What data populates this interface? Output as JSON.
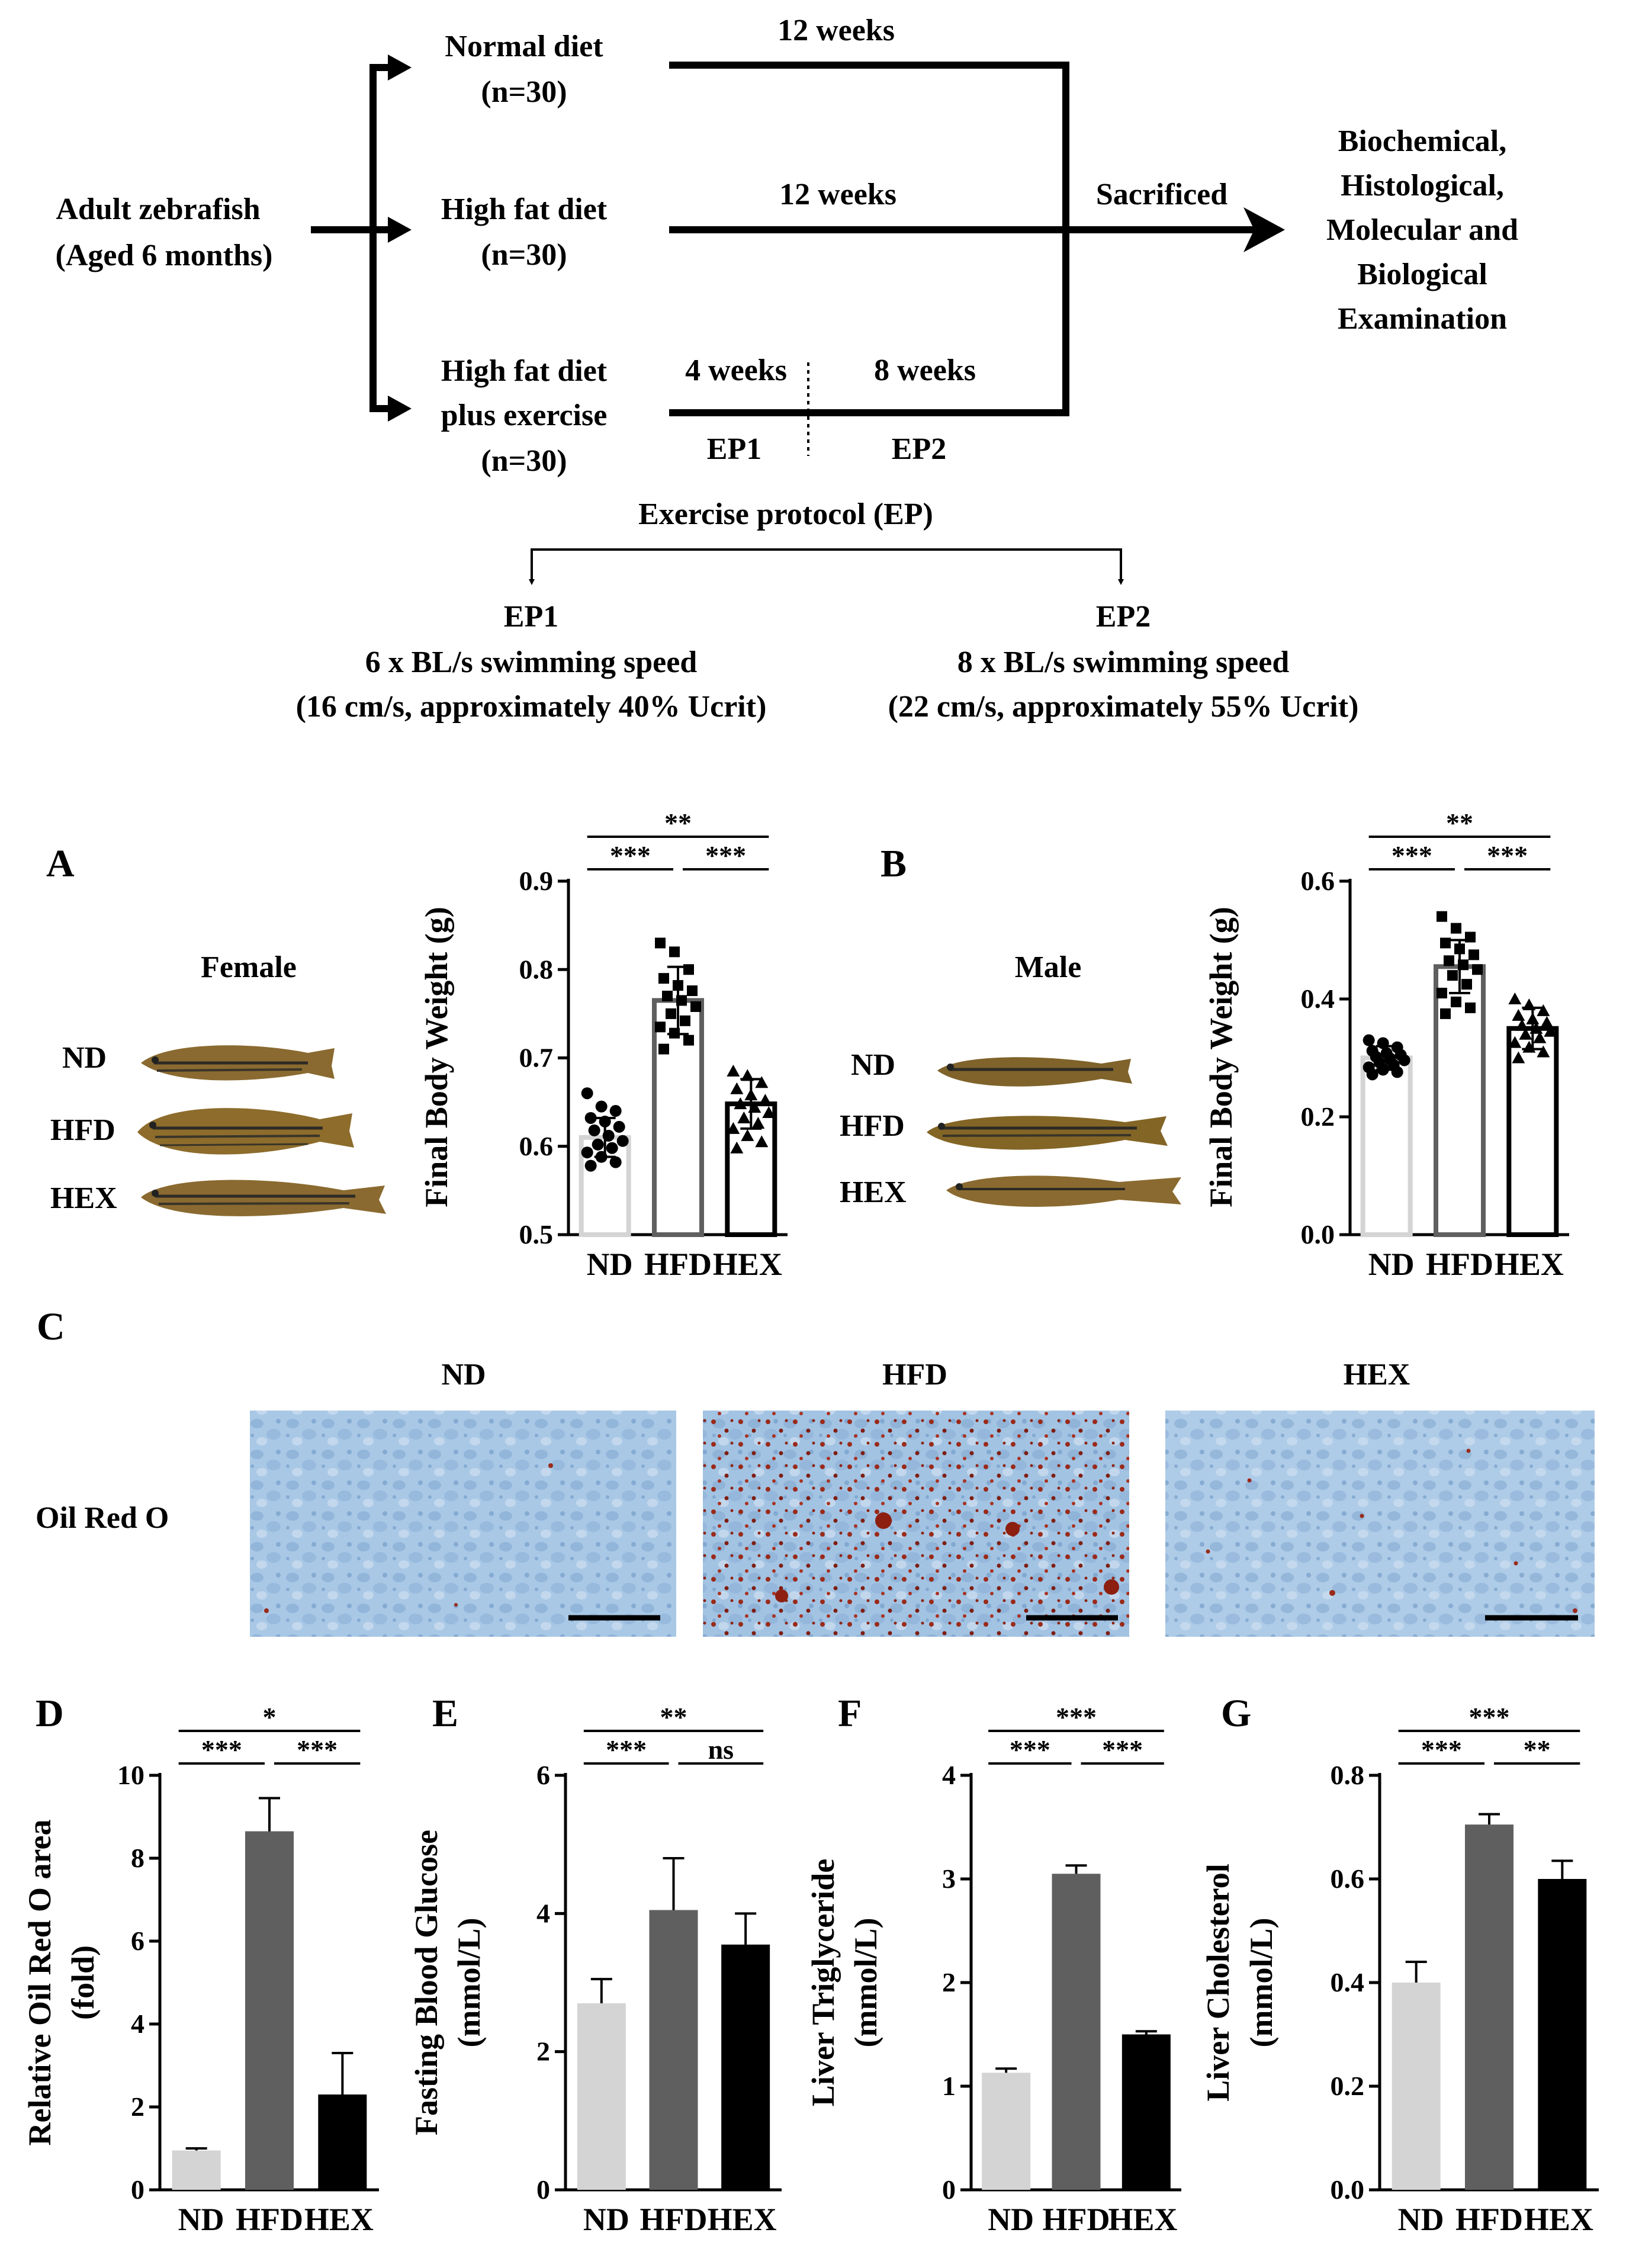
{
  "diagram": {
    "start": [
      "Adult zebrafish",
      "(Aged 6 months)"
    ],
    "groups": [
      {
        "lines": [
          "Normal diet",
          "(n=30)"
        ],
        "duration": "12 weeks"
      },
      {
        "lines": [
          "High fat diet",
          "(n=30)"
        ],
        "duration": "12 weeks"
      },
      {
        "lines": [
          "High fat diet",
          "plus exercise",
          "(n=30)"
        ],
        "durations": [
          "4 weeks",
          "8 weeks"
        ],
        "phases": [
          "EP1",
          "EP2"
        ]
      }
    ],
    "sacrificed": "Sacrificed",
    "outcome": [
      "Biochemical,",
      "Histological,",
      "Molecular and",
      "Biological",
      "Examination"
    ],
    "protocol_title": "Exercise protocol (EP)",
    "ep1": [
      "EP1",
      "6 x BL/s swimming speed",
      "(16 cm/s, approximately 40% Ucrit)"
    ],
    "ep2": [
      "EP2",
      "8 x BL/s swimming speed",
      "(22 cm/s, approximately 55% Ucrit)"
    ]
  },
  "panels": {
    "A": {
      "letter": "A",
      "sex": "Female",
      "fish_labels": [
        "ND",
        "HFD",
        "HEX"
      ]
    },
    "B": {
      "letter": "B",
      "sex": "Male",
      "fish_labels": [
        "ND",
        "HFD",
        "HEX"
      ]
    },
    "C": {
      "letter": "C",
      "row_label": "Oil Red O",
      "columns": [
        "ND",
        "HFD",
        "HEX"
      ]
    },
    "D": {
      "letter": "D"
    },
    "E": {
      "letter": "E"
    },
    "F": {
      "letter": "F"
    },
    "G": {
      "letter": "G"
    }
  },
  "colors": {
    "nd": "#d4d4d4",
    "hfd": "#5f5f5f",
    "hex": "#000000",
    "stain_bg": "#a9c8e6",
    "lipid": "#9a2a1a"
  },
  "chart_data": [
    {
      "id": "A",
      "type": "bar",
      "style": "scatter-bar",
      "categories": [
        "ND",
        "HFD",
        "HEX"
      ],
      "values": [
        0.61,
        0.765,
        0.648
      ],
      "errors": [
        0.022,
        0.038,
        0.028
      ],
      "points": [
        [
          0.66,
          0.645,
          0.64,
          0.632,
          0.628,
          0.622,
          0.618,
          0.612,
          0.606,
          0.602,
          0.598,
          0.593,
          0.588,
          0.582,
          0.578
        ],
        [
          0.83,
          0.82,
          0.8,
          0.79,
          0.782,
          0.776,
          0.77,
          0.765,
          0.758,
          0.75,
          0.742,
          0.735,
          0.728,
          0.72,
          0.71
        ],
        [
          0.685,
          0.68,
          0.672,
          0.665,
          0.658,
          0.652,
          0.648,
          0.644,
          0.638,
          0.632,
          0.626,
          0.62,
          0.612,
          0.605,
          0.598
        ]
      ],
      "markers": [
        "circle",
        "square",
        "triangle"
      ],
      "ylabel": "Final Body Weight (g)",
      "ylim": [
        0.5,
        0.9
      ],
      "yticks": [
        "0.5",
        "0.6",
        "0.7",
        "0.8",
        "0.9"
      ],
      "significance": [
        {
          "from": 0,
          "to": 1,
          "label": "***"
        },
        {
          "from": 1,
          "to": 2,
          "label": "***"
        },
        {
          "from": 0,
          "to": 2,
          "label": "**"
        }
      ]
    },
    {
      "id": "B",
      "type": "bar",
      "style": "scatter-bar",
      "categories": [
        "ND",
        "HFD",
        "HEX"
      ],
      "values": [
        0.3,
        0.455,
        0.35
      ],
      "errors": [
        0.02,
        0.045,
        0.035
      ],
      "points": [
        [
          0.33,
          0.325,
          0.318,
          0.312,
          0.308,
          0.305,
          0.302,
          0.299,
          0.296,
          0.292,
          0.288,
          0.284,
          0.28,
          0.276,
          0.272
        ],
        [
          0.54,
          0.52,
          0.505,
          0.495,
          0.485,
          0.475,
          0.465,
          0.458,
          0.45,
          0.44,
          0.425,
          0.41,
          0.395,
          0.385,
          0.375
        ],
        [
          0.4,
          0.39,
          0.38,
          0.372,
          0.366,
          0.36,
          0.355,
          0.35,
          0.345,
          0.34,
          0.334,
          0.326,
          0.318,
          0.31,
          0.3
        ]
      ],
      "markers": [
        "circle",
        "square",
        "triangle"
      ],
      "ylabel": "Final Body Weight (g)",
      "ylim": [
        0.0,
        0.6
      ],
      "yticks": [
        "0.0",
        "0.2",
        "0.4",
        "0.6"
      ],
      "significance": [
        {
          "from": 0,
          "to": 1,
          "label": "***"
        },
        {
          "from": 1,
          "to": 2,
          "label": "***"
        },
        {
          "from": 0,
          "to": 2,
          "label": "**"
        }
      ]
    },
    {
      "id": "D",
      "type": "bar",
      "categories": [
        "ND",
        "HFD",
        "HEX"
      ],
      "values": [
        0.95,
        8.65,
        2.3
      ],
      "errors": [
        0.05,
        0.8,
        1.0
      ],
      "ylabel": "Relative Oil Red O area (fold)",
      "ylabel_lines": [
        "Relative Oil Red O area",
        "(fold)"
      ],
      "ylim": [
        0,
        10
      ],
      "yticks": [
        "0",
        "2",
        "4",
        "6",
        "8",
        "10"
      ],
      "significance": [
        {
          "from": 0,
          "to": 1,
          "label": "***"
        },
        {
          "from": 1,
          "to": 2,
          "label": "***"
        },
        {
          "from": 0,
          "to": 2,
          "label": "*"
        }
      ]
    },
    {
      "id": "E",
      "type": "bar",
      "categories": [
        "ND",
        "HFD",
        "HEX"
      ],
      "values": [
        2.7,
        4.05,
        3.55
      ],
      "errors": [
        0.35,
        0.75,
        0.45
      ],
      "ylabel": "Fasting Blood Glucose (mmol/L)",
      "ylabel_lines": [
        "Fasting Blood Glucose",
        "(mmol/L)"
      ],
      "ylim": [
        0,
        6
      ],
      "yticks": [
        "0",
        "2",
        "4",
        "6"
      ],
      "significance": [
        {
          "from": 0,
          "to": 1,
          "label": "***"
        },
        {
          "from": 1,
          "to": 2,
          "label": "ns"
        },
        {
          "from": 0,
          "to": 2,
          "label": "**"
        }
      ]
    },
    {
      "id": "F",
      "type": "bar",
      "categories": [
        "ND",
        "HFD",
        "HEX"
      ],
      "values": [
        1.13,
        3.05,
        1.5
      ],
      "errors": [
        0.04,
        0.08,
        0.03
      ],
      "ylabel": "Liver Triglyceride (mmol/L)",
      "ylabel_lines": [
        "Liver Triglyceride",
        "(mmol/L)"
      ],
      "ylim": [
        0,
        4
      ],
      "yticks": [
        "0",
        "1",
        "2",
        "3",
        "4"
      ],
      "significance": [
        {
          "from": 0,
          "to": 1,
          "label": "***"
        },
        {
          "from": 1,
          "to": 2,
          "label": "***"
        },
        {
          "from": 0,
          "to": 2,
          "label": "***"
        }
      ]
    },
    {
      "id": "G",
      "type": "bar",
      "categories": [
        "ND",
        "HFD",
        "HEX"
      ],
      "values": [
        0.4,
        0.705,
        0.6
      ],
      "errors": [
        0.04,
        0.02,
        0.035
      ],
      "ylabel": "Liver Cholesterol (mmol/L)",
      "ylabel_lines": [
        "Liver Cholesterol",
        "(mmol/L)"
      ],
      "ylim": [
        0,
        0.8
      ],
      "yticks": [
        "0.0",
        "0.2",
        "0.4",
        "0.6",
        "0.8"
      ],
      "significance": [
        {
          "from": 0,
          "to": 1,
          "label": "***"
        },
        {
          "from": 1,
          "to": 2,
          "label": "**"
        },
        {
          "from": 0,
          "to": 2,
          "label": "***"
        }
      ]
    }
  ]
}
